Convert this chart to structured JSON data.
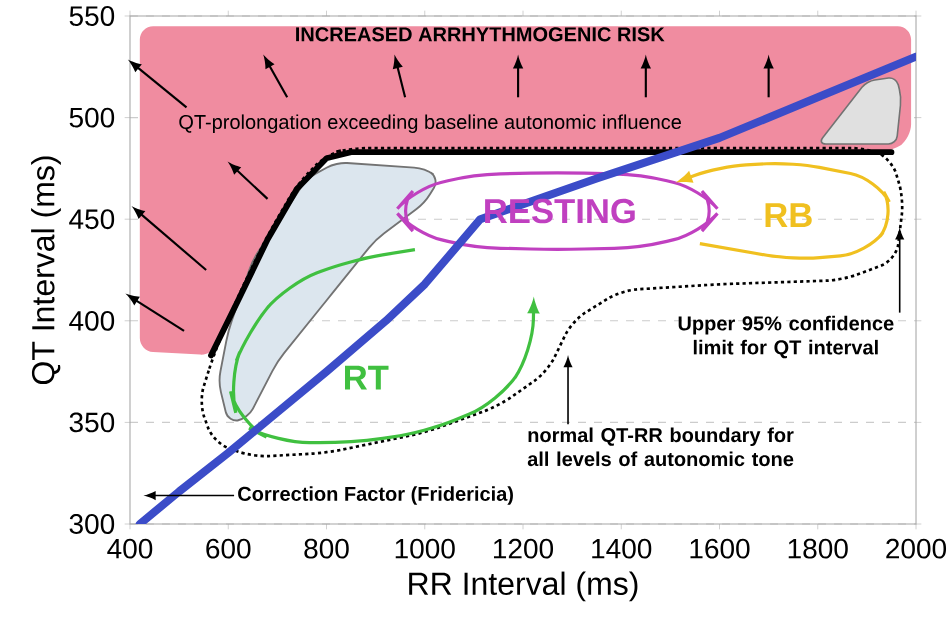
{
  "chart_data": {
    "type": "line",
    "xlabel": "RR Interval (ms)",
    "ylabel": "QT Interval (ms)",
    "xlim": [
      400,
      2000
    ],
    "xticks": [
      400,
      600,
      800,
      1000,
      1200,
      1400,
      1600,
      1800,
      2000
    ],
    "ylim": [
      300,
      550
    ],
    "yticks": [
      300,
      350,
      400,
      450,
      500,
      550
    ],
    "grid": "y",
    "series": [
      {
        "color": "#000000",
        "x": [
          565,
          620,
          680,
          740,
          800,
          850,
          1950
        ],
        "values": [
          383,
          410,
          440,
          465,
          480,
          483,
          483
        ]
      },
      {
        "color": "#3b4cc8",
        "x": [
          420,
          500,
          600,
          700,
          800,
          921,
          1000,
          1113,
          1350,
          1600,
          1800,
          2000
        ],
        "values": [
          300,
          316,
          335,
          355,
          375,
          400,
          418,
          450,
          470,
          490,
          510,
          530
        ]
      }
    ],
    "annotations": [
      "INCREASED ARRHYTHMOGENIC RISK",
      "QT-prolongation exceeding baseline autonomic influence",
      "RESTING",
      "RB",
      "RT",
      "Upper 95% confidence limit for QT interval",
      "normal QT-RR boundary for all levels of autonomic tone",
      "Correction Factor (Fridericia)"
    ]
  }
}
